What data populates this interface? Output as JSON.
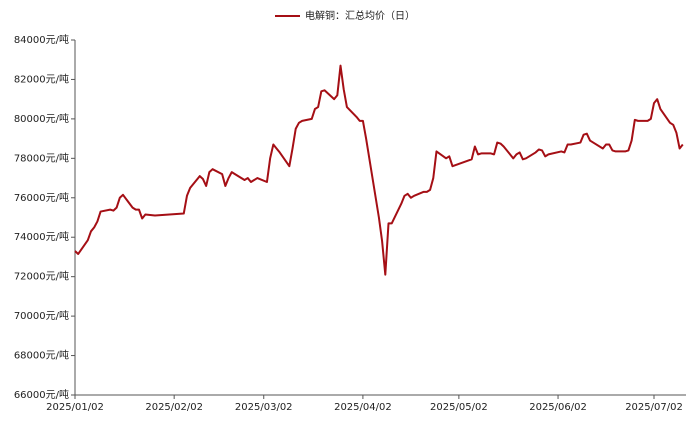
{
  "chart_data": {
    "type": "line",
    "legend_position": "top",
    "series": [
      {
        "name": "电解铜：汇总均价（日）",
        "color": "#a50f15",
        "x": [
          "2025/01/02",
          "2025/01/03",
          "2025/01/06",
          "2025/01/07",
          "2025/01/08",
          "2025/01/09",
          "2025/01/10",
          "2025/01/13",
          "2025/01/14",
          "2025/01/15",
          "2025/01/16",
          "2025/01/17",
          "2025/01/20",
          "2025/01/21",
          "2025/01/22",
          "2025/01/23",
          "2025/01/24",
          "2025/01/27",
          "2025/02/05",
          "2025/02/06",
          "2025/02/07",
          "2025/02/10",
          "2025/02/11",
          "2025/02/12",
          "2025/02/13",
          "2025/02/14",
          "2025/02/17",
          "2025/02/18",
          "2025/02/19",
          "2025/02/20",
          "2025/02/21",
          "2025/02/24",
          "2025/02/25",
          "2025/02/26",
          "2025/02/27",
          "2025/02/28",
          "2025/03/03",
          "2025/03/04",
          "2025/03/05",
          "2025/03/06",
          "2025/03/07",
          "2025/03/10",
          "2025/03/11",
          "2025/03/12",
          "2025/03/13",
          "2025/03/14",
          "2025/03/17",
          "2025/03/18",
          "2025/03/19",
          "2025/03/20",
          "2025/03/21",
          "2025/03/24",
          "2025/03/25",
          "2025/03/26",
          "2025/03/27",
          "2025/03/28",
          "2025/03/31",
          "2025/04/01",
          "2025/04/02",
          "2025/04/03",
          "2025/04/07",
          "2025/04/08",
          "2025/04/09",
          "2025/04/10",
          "2025/04/11",
          "2025/04/14",
          "2025/04/15",
          "2025/04/16",
          "2025/04/17",
          "2025/04/18",
          "2025/04/21",
          "2025/04/22",
          "2025/04/23",
          "2025/04/24",
          "2025/04/25",
          "2025/04/28",
          "2025/04/29",
          "2025/04/30",
          "2025/05/06",
          "2025/05/07",
          "2025/05/08",
          "2025/05/09",
          "2025/05/12",
          "2025/05/13",
          "2025/05/14",
          "2025/05/15",
          "2025/05/16",
          "2025/05/19",
          "2025/05/20",
          "2025/05/21",
          "2025/05/22",
          "2025/05/23",
          "2025/05/26",
          "2025/05/27",
          "2025/05/28",
          "2025/05/29",
          "2025/05/30",
          "2025/06/03",
          "2025/06/04",
          "2025/06/05",
          "2025/06/06",
          "2025/06/09",
          "2025/06/10",
          "2025/06/11",
          "2025/06/12",
          "2025/06/13",
          "2025/06/16",
          "2025/06/17",
          "2025/06/18",
          "2025/06/19",
          "2025/06/20",
          "2025/06/23",
          "2025/06/24",
          "2025/06/25",
          "2025/06/26",
          "2025/06/27",
          "2025/06/30",
          "2025/07/01",
          "2025/07/02",
          "2025/07/03",
          "2025/07/04",
          "2025/07/07",
          "2025/07/08",
          "2025/07/09",
          "2025/07/10",
          "2025/07/11"
        ],
        "values": [
          73300,
          73150,
          73850,
          74300,
          74500,
          74800,
          75300,
          75400,
          75350,
          75500,
          76000,
          76150,
          75500,
          75400,
          75400,
          74950,
          75150,
          75100,
          75200,
          76100,
          76500,
          77100,
          76950,
          76600,
          77300,
          77450,
          77200,
          76600,
          77000,
          77300,
          77200,
          76900,
          77000,
          76800,
          76900,
          77000,
          76800,
          78000,
          78700,
          78500,
          78300,
          77600,
          78500,
          79500,
          79800,
          79900,
          80000,
          80500,
          80600,
          81400,
          81450,
          81000,
          81200,
          82700,
          81500,
          80600,
          80100,
          79900,
          79900,
          79000,
          75000,
          73800,
          72100,
          74700,
          74700,
          75700,
          76100,
          76200,
          76000,
          76100,
          76300,
          76300,
          76400,
          77000,
          78350,
          78000,
          78100,
          77600,
          77950,
          78600,
          78200,
          78250,
          78250,
          78200,
          78800,
          78750,
          78600,
          78000,
          78200,
          78300,
          77950,
          78000,
          78300,
          78450,
          78400,
          78100,
          78200,
          78350,
          78300,
          78700,
          78700,
          78800,
          79200,
          79250,
          78900,
          78800,
          78500,
          78700,
          78700,
          78400,
          78350,
          78350,
          78400,
          78900,
          79950,
          79900,
          79900,
          80000,
          80800,
          81000,
          80500,
          79800,
          79700,
          79300,
          78500,
          78700
        ]
      }
    ],
    "xlim": [
      "2025/01/02",
      "2025/07/12"
    ],
    "xticks": [
      "2025/01/02",
      "2025/02/02",
      "2025/03/02",
      "2025/04/02",
      "2025/05/02",
      "2025/06/02",
      "2025/07/02"
    ],
    "ylim": [
      66000,
      84000
    ],
    "yticks": [
      {
        "value": 66000,
        "label": "66000元/吨"
      },
      {
        "value": 68000,
        "label": "68000元/吨"
      },
      {
        "value": 70000,
        "label": "70000元/吨"
      },
      {
        "value": 72000,
        "label": "72000元/吨"
      },
      {
        "value": 74000,
        "label": "74000元/吨"
      },
      {
        "value": 76000,
        "label": "76000元/吨"
      },
      {
        "value": 78000,
        "label": "78000元/吨"
      },
      {
        "value": 80000,
        "label": "80000元/吨"
      },
      {
        "value": 82000,
        "label": "82000元/吨"
      },
      {
        "value": 84000,
        "label": "84000元/吨"
      }
    ],
    "grid": false
  }
}
